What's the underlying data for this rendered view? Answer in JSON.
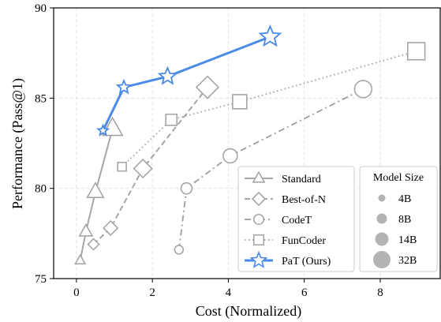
{
  "chart_data": {
    "type": "line",
    "xlabel": "Cost (Normalized)",
    "ylabel": "Performance (Pass@1)",
    "xlim": [
      -0.6,
      9.6
    ],
    "ylim": [
      75,
      90
    ],
    "xticks": [
      0,
      2,
      4,
      6,
      8
    ],
    "yticks": [
      75,
      80,
      85,
      90
    ],
    "grid": true,
    "legend_title_sizes": "Model Size",
    "legend_placement": "bottom-right",
    "series": [
      {
        "name": "Standard",
        "color": "#a6a6a6",
        "marker": "triangle",
        "dash": "solid",
        "x": [
          0.1,
          0.25,
          0.5,
          0.95
        ],
        "y": [
          76.0,
          77.6,
          79.8,
          83.3
        ]
      },
      {
        "name": "Best-of-N",
        "color": "#a6a6a6",
        "marker": "diamond",
        "dash": "dashed",
        "x": [
          0.45,
          0.9,
          1.75,
          3.45
        ],
        "y": [
          76.9,
          77.8,
          81.1,
          85.6
        ]
      },
      {
        "name": "CodeT",
        "color": "#a6a6a6",
        "marker": "circle",
        "dash": "dashdot",
        "x": [
          2.7,
          2.9,
          4.05,
          7.55
        ],
        "y": [
          76.6,
          80.0,
          81.8,
          85.5
        ]
      },
      {
        "name": "FunCoder",
        "color": "#a6a6a6",
        "marker": "square",
        "dash": "dotted",
        "x": [
          1.2,
          2.5,
          4.3,
          8.95
        ],
        "y": [
          81.2,
          83.8,
          84.8,
          87.6
        ]
      },
      {
        "name": "PaT (Ours)",
        "color": "#4a8ae8",
        "marker": "star",
        "dash": "solid",
        "x": [
          0.7,
          1.25,
          2.4,
          5.1
        ],
        "y": [
          83.2,
          85.6,
          86.2,
          88.4
        ]
      }
    ],
    "sizes": [
      {
        "label": "4B",
        "level": 1
      },
      {
        "label": "8B",
        "level": 2
      },
      {
        "label": "14B",
        "level": 3
      },
      {
        "label": "32B",
        "level": 4
      }
    ]
  }
}
